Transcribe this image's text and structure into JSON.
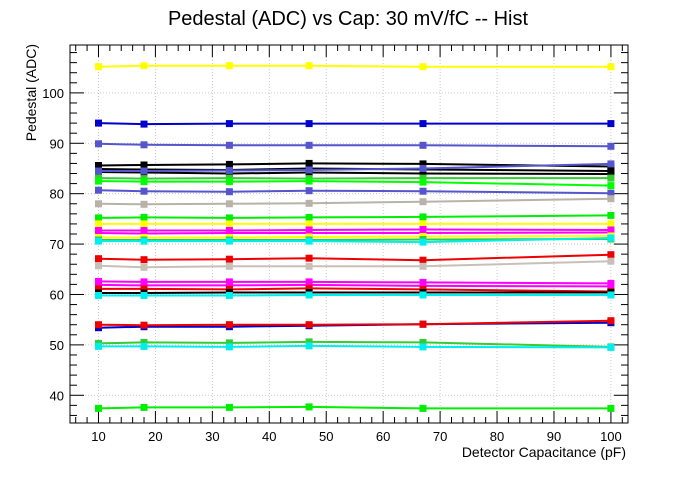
{
  "chart_data": {
    "type": "line",
    "title": "Pedestal (ADC) vs Cap: 30 mV/fC -- Hist",
    "xlabel": "Detector Capacitance (pF)",
    "ylabel": "Pedestal (ADC)",
    "xlim": [
      5,
      103
    ],
    "ylim": [
      34.5,
      109.5
    ],
    "x_ticks": [
      10,
      20,
      30,
      40,
      50,
      60,
      70,
      80,
      90,
      100
    ],
    "y_ticks": [
      40,
      50,
      60,
      70,
      80,
      90,
      100
    ],
    "grid": true,
    "legend": "none",
    "marker": "square",
    "x": [
      10,
      18,
      33,
      47,
      67,
      100
    ],
    "series": [
      {
        "color": "#ffff00",
        "values": [
          105.2,
          105.4,
          105.4,
          105.4,
          105.2,
          105.2
        ]
      },
      {
        "color": "#0000cc",
        "values": [
          94.0,
          93.8,
          93.9,
          93.9,
          93.9,
          93.9
        ]
      },
      {
        "color": "#5555cc",
        "values": [
          89.9,
          89.7,
          89.6,
          89.6,
          89.6,
          89.4
        ]
      },
      {
        "color": "#000000",
        "values": [
          85.6,
          85.7,
          85.8,
          86.0,
          85.9,
          85.4
        ]
      },
      {
        "color": "#000000",
        "values": [
          84.9,
          84.8,
          84.7,
          85.0,
          84.8,
          84.5
        ]
      },
      {
        "color": "#000000",
        "values": [
          84.3,
          84.2,
          84.0,
          84.2,
          84.0,
          83.9
        ]
      },
      {
        "color": "#5555cc",
        "values": [
          84.5,
          84.5,
          84.6,
          84.7,
          85.0,
          85.9
        ]
      },
      {
        "color": "#33cc33",
        "values": [
          83.1,
          83.0,
          83.1,
          83.0,
          83.1,
          83.1
        ]
      },
      {
        "color": "#00ff00",
        "values": [
          82.5,
          82.4,
          82.4,
          82.5,
          82.3,
          81.6
        ]
      },
      {
        "color": "#5555cc",
        "values": [
          80.7,
          80.5,
          80.4,
          80.6,
          80.5,
          80.1
        ]
      },
      {
        "color": "#b8b2a8",
        "values": [
          78.0,
          77.9,
          78.0,
          78.1,
          78.4,
          79.0
        ]
      },
      {
        "color": "#00ee00",
        "values": [
          75.2,
          75.3,
          75.2,
          75.3,
          75.4,
          75.7
        ]
      },
      {
        "color": "#ffff00",
        "values": [
          74.0,
          74.0,
          74.0,
          74.0,
          74.0,
          74.0
        ]
      },
      {
        "color": "#ff00ff",
        "values": [
          72.7,
          72.7,
          72.7,
          72.8,
          72.9,
          72.8
        ]
      },
      {
        "color": "#ff00ff",
        "values": [
          72.2,
          72.1,
          72.2,
          72.2,
          72.2,
          72.3
        ]
      },
      {
        "color": "#ffff00",
        "values": [
          71.3,
          71.3,
          71.3,
          71.4,
          71.5,
          71.6
        ]
      },
      {
        "color": "#33cc33",
        "values": [
          70.8,
          70.8,
          70.8,
          70.8,
          70.9,
          71.0
        ]
      },
      {
        "color": "#00eeee",
        "values": [
          70.6,
          70.6,
          70.6,
          70.6,
          70.4,
          71.2
        ]
      },
      {
        "color": "#ee0000",
        "values": [
          67.1,
          66.9,
          67.0,
          67.2,
          66.8,
          67.9
        ]
      },
      {
        "color": "#c8c0b8",
        "values": [
          65.7,
          65.4,
          65.6,
          65.6,
          65.6,
          66.6
        ]
      },
      {
        "color": "#ff00ff",
        "values": [
          62.6,
          62.5,
          62.5,
          62.5,
          62.4,
          62.2
        ]
      },
      {
        "color": "#ff00ff",
        "values": [
          61.9,
          61.8,
          61.8,
          61.9,
          61.7,
          61.6
        ]
      },
      {
        "color": "#ee0000",
        "values": [
          61.1,
          61.1,
          61.0,
          61.2,
          61.0,
          60.6
        ]
      },
      {
        "color": "#000000",
        "values": [
          60.3,
          60.3,
          60.4,
          60.4,
          60.4,
          60.4
        ]
      },
      {
        "color": "#00eeee",
        "values": [
          59.8,
          59.8,
          59.8,
          59.9,
          59.9,
          59.9
        ]
      },
      {
        "color": "#0000cc",
        "values": [
          53.4,
          53.6,
          53.6,
          53.8,
          54.1,
          54.4
        ]
      },
      {
        "color": "#ee0000",
        "values": [
          54.0,
          53.9,
          54.0,
          54.0,
          54.1,
          54.8
        ]
      },
      {
        "color": "#33cc33",
        "values": [
          50.3,
          50.5,
          50.4,
          50.6,
          50.5,
          49.6
        ]
      },
      {
        "color": "#00eeee",
        "values": [
          49.7,
          49.7,
          49.6,
          49.8,
          49.6,
          49.5
        ]
      },
      {
        "color": "#00ee00",
        "values": [
          37.4,
          37.6,
          37.6,
          37.7,
          37.4,
          37.4
        ]
      }
    ]
  }
}
